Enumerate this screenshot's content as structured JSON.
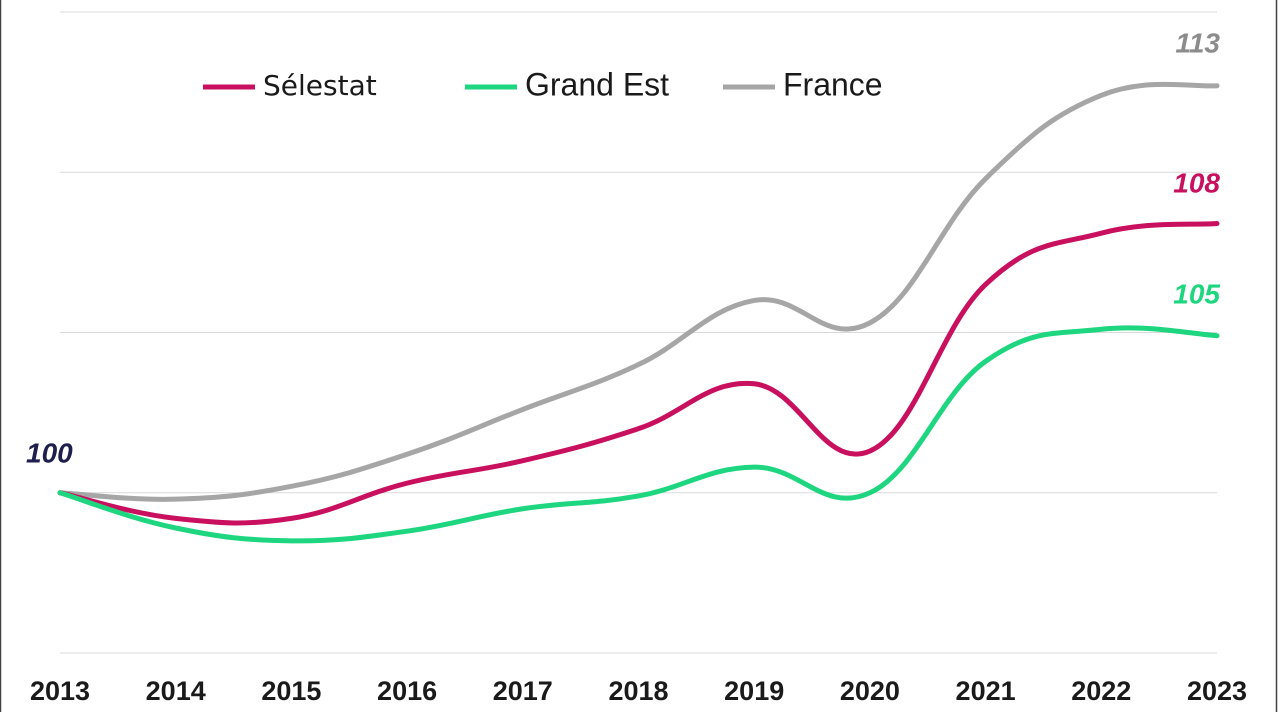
{
  "chart_data": {
    "type": "line",
    "x": [
      2013,
      2014,
      2015,
      2016,
      2017,
      2018,
      2019,
      2020,
      2021,
      2022,
      2023
    ],
    "series": [
      {
        "name": "Sélestat",
        "color": "#c8105f",
        "values": [
          100,
          99.2,
          99.2,
          100.3,
          101.0,
          102.0,
          103.4,
          101.3,
          106.5,
          108.1,
          108.4
        ]
      },
      {
        "name": "Grand Est",
        "color": "#1ed67f",
        "values": [
          100,
          98.9,
          98.5,
          98.8,
          99.5,
          99.9,
          100.8,
          100.0,
          104.1,
          105.1,
          104.9
        ]
      },
      {
        "name": "France",
        "color": "#a6a6a6",
        "values": [
          100,
          99.8,
          100.2,
          101.2,
          102.6,
          104.0,
          106.0,
          105.3,
          109.8,
          112.4,
          112.7
        ]
      }
    ],
    "annotations": [
      {
        "text": "100",
        "color": "#1f1f4d"
      },
      {
        "text": "113",
        "color": "#8c8c8c"
      },
      {
        "text": "108",
        "color": "#c8105f"
      },
      {
        "text": "105",
        "color": "#1ed67f"
      }
    ],
    "xlim": [
      2013,
      2023
    ],
    "ylim": [
      95,
      115
    ],
    "yticks": [
      95,
      100,
      105,
      110,
      115
    ],
    "grid": true,
    "legend": "top"
  }
}
